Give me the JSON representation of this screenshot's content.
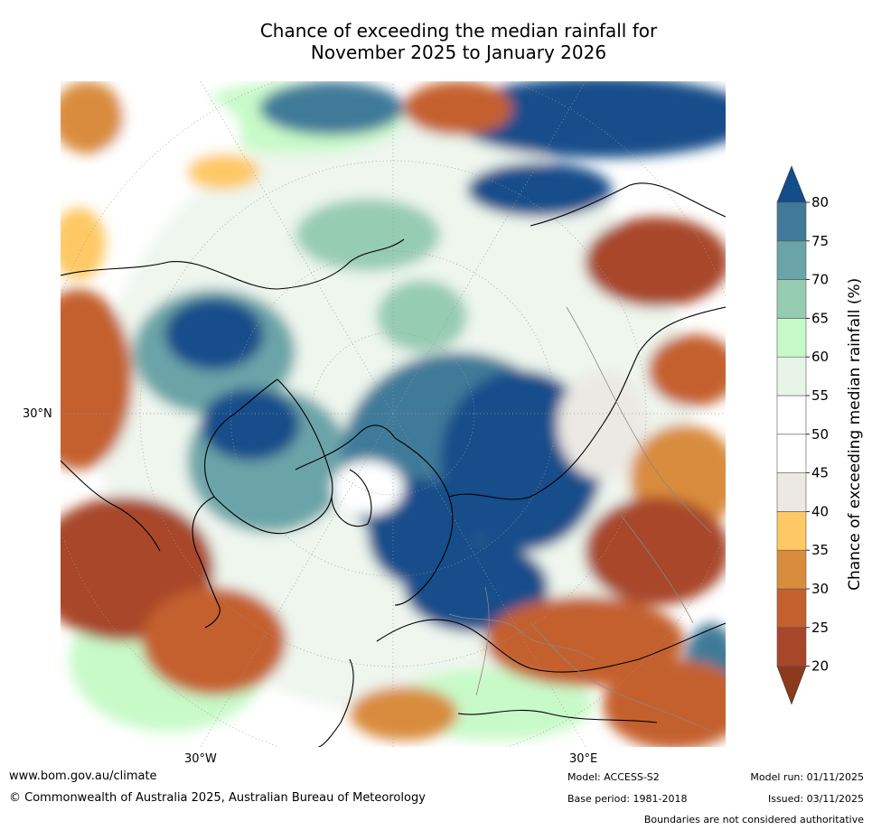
{
  "title_line1": "Chance of exceeding the median rainfall for",
  "title_line2": "November 2025 to January 2026",
  "map_labels": {
    "lat_label": "30°N",
    "lon_label_w": "30°W",
    "lon_label_e": "30°E"
  },
  "colorbar": {
    "label": "Chance of exceeding median rainfall (%)",
    "ticks": [
      "20",
      "25",
      "30",
      "35",
      "40",
      "45",
      "50",
      "55",
      "60",
      "65",
      "70",
      "75",
      "80"
    ],
    "colors": [
      "#8c3a1c",
      "#a8462a",
      "#c4602e",
      "#d98c3c",
      "#fec965",
      "#ece9e4",
      "#ffffff",
      "#ffffff",
      "#e8f4e8",
      "#c8fac8",
      "#96ccb2",
      "#6aa4a8",
      "#417a99",
      "#134e8a"
    ]
  },
  "footer": {
    "website": "www.bom.gov.au/climate",
    "copyright": "© Commonwealth of Australia 2025, Australian Bureau of Meteorology",
    "model": "Model: ACCESS-S2",
    "base_period": "Base period: 1981-2018",
    "model_run": "Model run: 01/11/2025",
    "issued": "Issued: 03/11/2025",
    "disclaimer": "Boundaries are not considered authoritative"
  }
}
